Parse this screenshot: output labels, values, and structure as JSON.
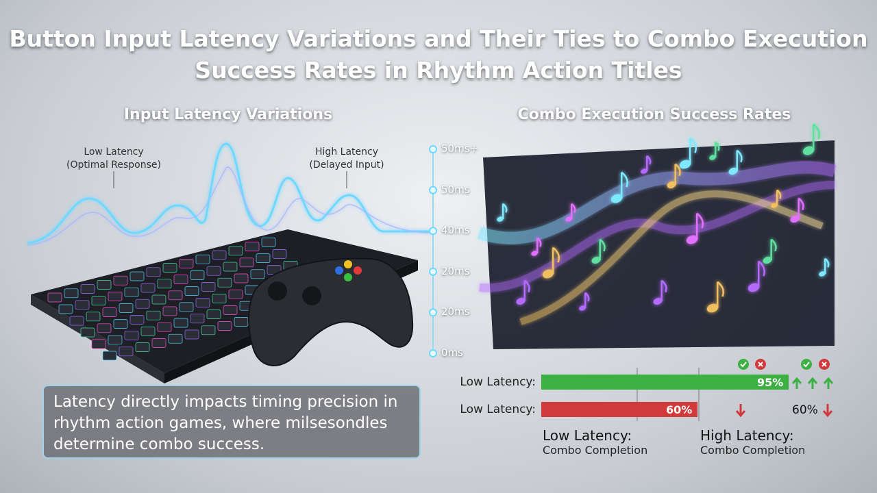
{
  "title": "Button Input Latency Variations and Their Ties to Combo Execution Success Rates in Rhythm Action Titles",
  "latency_panel": {
    "heading": "Input Latency Variations",
    "annotations": [
      {
        "label": "Low Latency",
        "sublabel": "(Optimal Response)"
      },
      {
        "label": "High Latency",
        "sublabel": "(Delayed Input)"
      }
    ],
    "scale": [
      "50ms+",
      "50ms",
      "40ms",
      "20ms",
      "20ms",
      "0ms"
    ]
  },
  "combo_panel": {
    "heading": "Combo Execution Success Rates",
    "bars": [
      {
        "label": "Low Latency:",
        "value": 95,
        "value_label": "95%",
        "color": "#3cb043"
      },
      {
        "label": "Low Latency:",
        "value": 60,
        "value_label": "60%",
        "color": "#d13a3a"
      }
    ],
    "extra_label": "60%",
    "footers": [
      {
        "title": "Low Latency:",
        "subtitle": "Combo Completion"
      },
      {
        "title": "High Latency:",
        "subtitle": "Combo Completion"
      }
    ]
  },
  "note": "Latency directly impacts timing precision in rhythm action games, where milsesondles determine combo success."
}
